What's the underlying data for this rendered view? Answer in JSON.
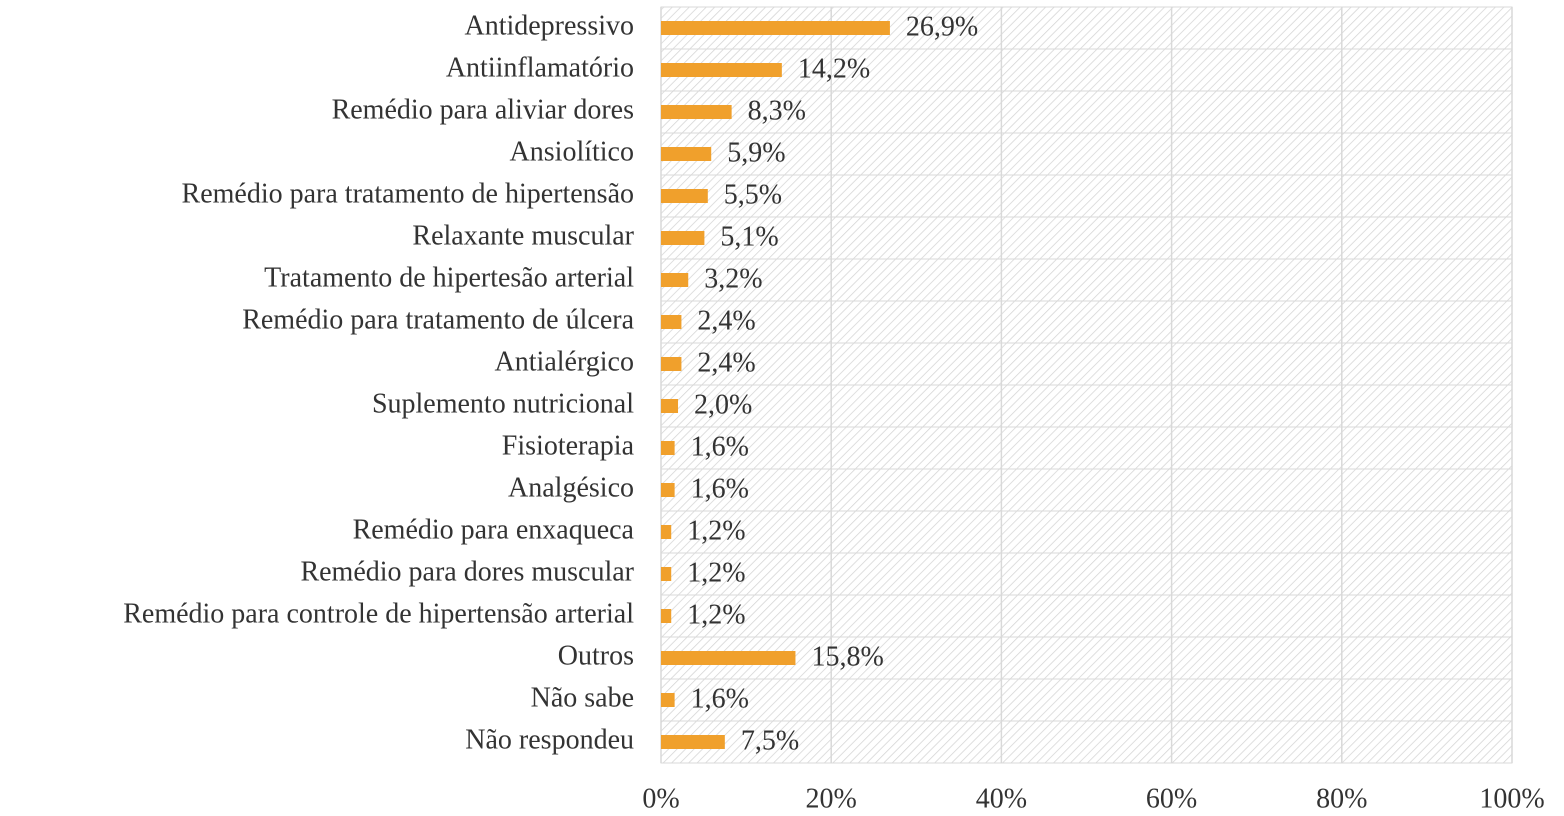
{
  "chart_data": {
    "type": "bar",
    "orientation": "horizontal",
    "categories": [
      "Antidepressivo",
      "Antiinflamatório",
      "Remédio para aliviar dores",
      "Ansiolítico",
      "Remédio para tratamento de hipertensão",
      "Relaxante muscular",
      "Tratamento de hipertesão arterial",
      "Remédio para tratamento de úlcera",
      "Antialérgico",
      "Suplemento nutricional",
      "Fisioterapia",
      "Analgésico",
      "Remédio para enxaqueca",
      "Remédio para dores muscular",
      "Remédio para controle de hipertensão arterial",
      "Outros",
      "Não sabe",
      "Não respondeu"
    ],
    "values": [
      26.9,
      14.2,
      8.3,
      5.9,
      5.5,
      5.1,
      3.2,
      2.4,
      2.4,
      2.0,
      1.6,
      1.6,
      1.2,
      1.2,
      1.2,
      15.8,
      1.6,
      7.5
    ],
    "value_labels": [
      "26,9%",
      "14,2%",
      "8,3%",
      "5,9%",
      "5,5%",
      "5,1%",
      "3,2%",
      "2,4%",
      "2,4%",
      "2,0%",
      "1,6%",
      "1,6%",
      "1,2%",
      "1,2%",
      "1,2%",
      "15,8%",
      "1,6%",
      "7,5%"
    ],
    "color": "#f0a02c",
    "xlim": [
      0,
      100
    ],
    "xticks": [
      {
        "value": 0,
        "label": "0%"
      },
      {
        "value": 20,
        "label": "20%"
      },
      {
        "value": 40,
        "label": "40%"
      },
      {
        "value": 60,
        "label": "60%"
      },
      {
        "value": 80,
        "label": "80%"
      },
      {
        "value": 100,
        "label": "100%"
      }
    ],
    "grid": true
  }
}
